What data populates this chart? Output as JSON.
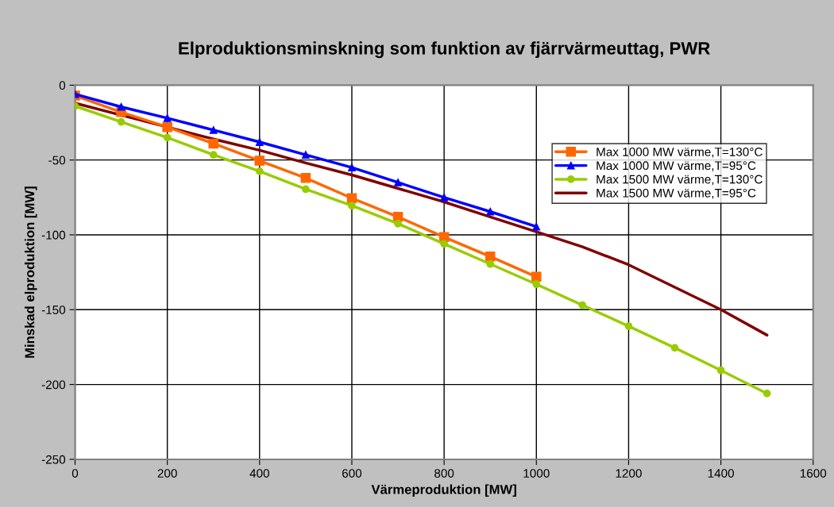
{
  "chart_data": {
    "type": "line",
    "title": "Elproduktionsminskning som funktion av fjärrvärmeuttag, PWR",
    "xlabel": "Värmeproduktion [MW]",
    "ylabel": "Minskad elproduktion [MW]",
    "xlim": [
      0,
      1600
    ],
    "xticks": [
      0,
      200,
      400,
      600,
      800,
      1000,
      1200,
      1400,
      1600
    ],
    "ylim": [
      -250,
      0
    ],
    "yticks": [
      -250,
      -200,
      -150,
      -100,
      -50,
      0
    ],
    "grid": true,
    "legend": "top right",
    "series": [
      {
        "name": "Max 1000 MW värme,T=130°C",
        "color": "#ff6600",
        "marker": "square",
        "x": [
          0,
          100,
          200,
          300,
          400,
          500,
          600,
          700,
          800,
          900,
          1000
        ],
        "values": [
          -7,
          -18,
          -28,
          -39,
          -50.5,
          -62,
          -75.5,
          -88,
          -101.5,
          -114.5,
          -128
        ]
      },
      {
        "name": "Max 1000 MW värme,T=95°C",
        "color": "#0000ff",
        "marker": "triangle",
        "x": [
          0,
          100,
          200,
          300,
          400,
          500,
          600,
          700,
          800,
          900,
          1000
        ],
        "values": [
          -6,
          -14.5,
          -22,
          -30,
          -38,
          -46.5,
          -55,
          -65,
          -75,
          -84.5,
          -94.5
        ]
      },
      {
        "name": "Max 1500 MW värme,T=130°C",
        "color": "#99cc00",
        "marker": "circle",
        "x": [
          0,
          100,
          200,
          300,
          400,
          500,
          600,
          700,
          800,
          900,
          1000,
          1100,
          1200,
          1300,
          1400,
          1500
        ],
        "values": [
          -14,
          -24.5,
          -35,
          -46.5,
          -57.5,
          -69.5,
          -80.5,
          -92.5,
          -106,
          -119.5,
          -133,
          -147,
          -161,
          -175.5,
          -190.5,
          -206
        ]
      },
      {
        "name": "Max 1500 MW värme,T=95°C",
        "color": "#800000",
        "marker": "none",
        "x": [
          0,
          100,
          200,
          300,
          400,
          500,
          600,
          700,
          800,
          900,
          1000,
          1100,
          1200,
          1300,
          1400,
          1500
        ],
        "values": [
          -12,
          -20,
          -28,
          -36,
          -43.5,
          -52,
          -60,
          -69,
          -78,
          -88,
          -98,
          -108,
          -120,
          -135,
          -150,
          -167
        ]
      }
    ]
  }
}
